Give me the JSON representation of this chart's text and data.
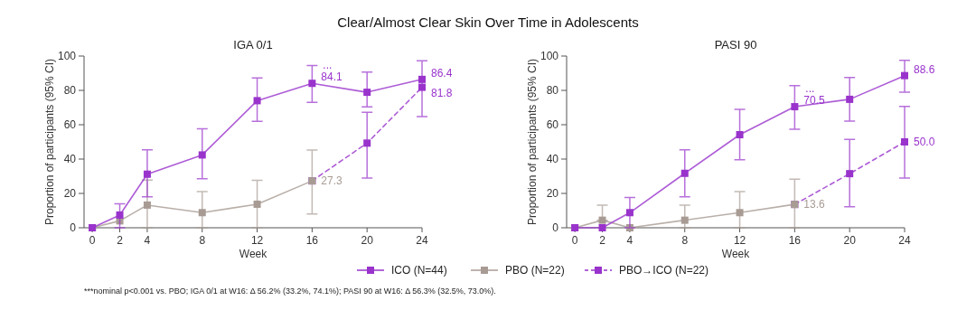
{
  "chart_data": [
    {
      "type": "line",
      "title": "Clear/Almost Clear Skin Over Time in Adolescents",
      "subtitle": "IGA 0/1",
      "xlabel": "Week",
      "ylabel": "Proportion of participants (95% CI)",
      "xlim": [
        -0.6,
        24
      ],
      "xticks": [
        0,
        2,
        4,
        8,
        12,
        16,
        20,
        24
      ],
      "ylim": [
        0,
        100
      ],
      "yticks": [
        0,
        20,
        40,
        60,
        80,
        100
      ],
      "marker": "square",
      "grid": false,
      "legend": "bottom",
      "series": [
        {
          "name": "ICO (N=44)",
          "color": "#9933cc",
          "x": [
            0,
            2,
            4,
            8,
            12,
            16,
            20,
            24
          ],
          "values": [
            0,
            7.4,
            31.2,
            42.4,
            74,
            84.1,
            78.9,
            86.4
          ],
          "errors": [
            null,
            [
              0,
              14
            ],
            [
              18,
              45.4
            ],
            [
              28.5,
              57.6
            ],
            [
              62,
              87.3
            ],
            [
              73,
              94.5
            ],
            [
              70.4,
              90.7
            ],
            [
              64.8,
              97.2
            ]
          ],
          "value_labels": [
            null,
            null,
            null,
            null,
            null,
            "84.1",
            null,
            "86.4"
          ]
        },
        {
          "name": "PBO (N=22)",
          "color": "#a89b94",
          "x": [
            0,
            2,
            4,
            8,
            12,
            16
          ],
          "values": [
            0,
            4,
            13.2,
            8.8,
            13.7,
            27.3
          ],
          "errors": [
            null,
            null,
            [
              0,
              27.8
            ],
            [
              0,
              21.1
            ],
            [
              0,
              27.6
            ],
            [
              8,
              45.2
            ]
          ],
          "value_labels": [
            null,
            null,
            null,
            null,
            null,
            "27.3"
          ]
        },
        {
          "name": "PBO→ICO (N=22)",
          "color": "#9933cc",
          "line_style": "dashed",
          "x": [
            16,
            20,
            24
          ],
          "values": [
            27.3,
            49.3,
            81.8
          ],
          "errors": [
            null,
            [
              29,
              67.3
            ],
            null
          ],
          "value_labels": [
            null,
            null,
            "81.8"
          ]
        }
      ],
      "annotations": [
        {
          "text": "...",
          "x": 16,
          "y": 84.1
        },
        "***nominal p<0.001 vs. PBO;  IGA 0/1 at W16: Δ 56.2% (33.2%, 74.1%); PASI 90 at W16: Δ 56.3% (32.5%, 73.0%)."
      ]
    },
    {
      "type": "line",
      "subtitle": "PASI 90",
      "xlabel": "Week",
      "ylabel": "Proportion of participants (95% CI)",
      "xlim": [
        -0.6,
        24
      ],
      "xticks": [
        0,
        2,
        4,
        8,
        12,
        16,
        20,
        24
      ],
      "ylim": [
        0,
        100
      ],
      "yticks": [
        0,
        20,
        40,
        60,
        80,
        100
      ],
      "marker": "square",
      "grid": false,
      "series": [
        {
          "color": "#9933cc",
          "x": [
            0,
            2,
            4,
            8,
            12,
            16,
            20,
            24
          ],
          "values": [
            0,
            0,
            8.8,
            31.7,
            54.2,
            70.5,
            74.8,
            88.6
          ],
          "errors": [
            null,
            null,
            [
              0,
              17.6
            ],
            [
              18,
              45.4
            ],
            [
              39.6,
              69
            ],
            [
              57.4,
              82.7
            ],
            [
              62.1,
              87.5
            ],
            [
              79,
              97.5
            ]
          ],
          "value_labels": [
            null,
            null,
            null,
            null,
            null,
            "70.5",
            null,
            "88.6"
          ]
        },
        {
          "color": "#a89b94",
          "x": [
            0,
            2,
            4,
            8,
            12,
            16
          ],
          "values": [
            0,
            4.4,
            0,
            4.4,
            8.8,
            13.6
          ],
          "errors": [
            null,
            [
              4.4,
              13.2
            ],
            null,
            [
              0,
              13.2
            ],
            [
              0,
              21.1
            ],
            [
              0,
              28.3
            ]
          ],
          "value_labels": [
            null,
            null,
            null,
            null,
            null,
            "13.6"
          ]
        },
        {
          "color": "#9933cc",
          "line_style": "dashed",
          "x": [
            16,
            20,
            24
          ],
          "values": [
            13.6,
            31.5,
            50.0
          ],
          "errors": [
            null,
            [
              12.3,
              51.4
            ],
            [
              28.9,
              70.6
            ]
          ],
          "value_labels": [
            null,
            null,
            "50.0"
          ]
        }
      ],
      "annotations": [
        {
          "text": "...",
          "x": 16,
          "y": 70.5
        }
      ]
    }
  ]
}
